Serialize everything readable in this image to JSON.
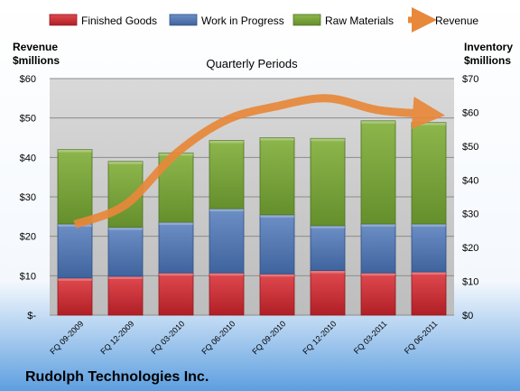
{
  "chart_data": {
    "type": "bar",
    "subtitle": "Quarterly Periods",
    "company": "Rudolph Technologies Inc.",
    "y_left": {
      "label_line1": "Revenue",
      "label_line2": "$millions",
      "ticks": [
        "$-",
        "$10",
        "$20",
        "$30",
        "$40",
        "$50",
        "$60"
      ],
      "range": [
        0,
        60
      ]
    },
    "y_right": {
      "label_line1": "Inventory",
      "label_line2": "$millions",
      "ticks": [
        "$0",
        "$10",
        "$20",
        "$30",
        "$40",
        "$50",
        "$60",
        "$70"
      ],
      "range": [
        0,
        70
      ]
    },
    "categories": [
      "FQ 09-2009",
      "FQ 12-2009",
      "FQ 03-2010",
      "FQ 06-2010",
      "FQ 09-2010",
      "FQ 12-2010",
      "FQ 03-2011",
      "FQ 06-2011"
    ],
    "legend": [
      "Finished Goods",
      "Work in Progress",
      "Raw Materials",
      "Revenue"
    ],
    "series": [
      {
        "name": "Finished Goods",
        "axis": "right",
        "stacked": true,
        "color": "#c0282f",
        "values": [
          11,
          11.5,
          12.5,
          12.5,
          12.2,
          13.2,
          12.5,
          12.8
        ]
      },
      {
        "name": "Work in Progress",
        "axis": "right",
        "stacked": true,
        "color": "#4d73ad",
        "values": [
          16,
          14.5,
          15,
          19,
          17.5,
          13.3,
          14.5,
          14.2
        ]
      },
      {
        "name": "Raw Materials",
        "axis": "right",
        "stacked": true,
        "color": "#76a03a",
        "values": [
          22,
          19.5,
          20.5,
          20.2,
          22.8,
          25.8,
          30.5,
          30
        ]
      },
      {
        "name": "Revenue",
        "axis": "left",
        "type": "line",
        "color": "#e8883a",
        "values": [
          23,
          28,
          41,
          49.5,
          53,
          55,
          52,
          51
        ]
      }
    ]
  }
}
